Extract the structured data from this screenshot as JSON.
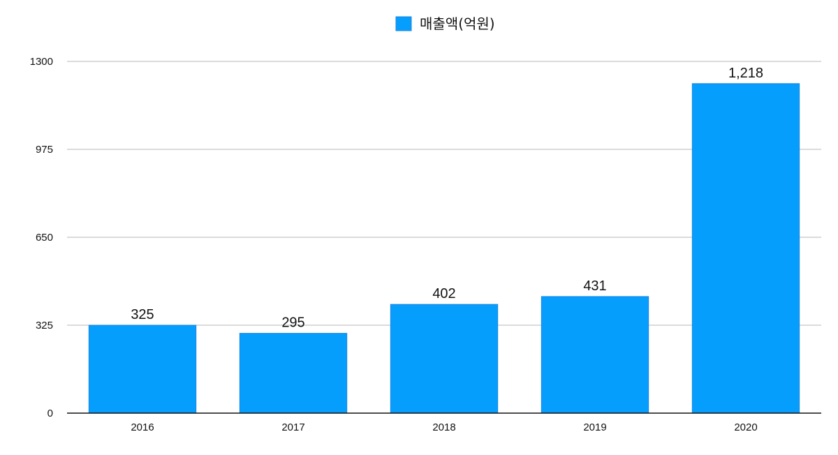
{
  "chart_data": {
    "type": "bar",
    "categories": [
      "2016",
      "2017",
      "2018",
      "2019",
      "2020"
    ],
    "series": [
      {
        "name": "매출액(억원)",
        "values": [
          325,
          295,
          402,
          431,
          1218
        ],
        "labels": [
          "325",
          "295",
          "402",
          "431",
          "1,218"
        ],
        "color": "#069EFC"
      }
    ],
    "y_ticks": [
      "0",
      "325",
      "650",
      "975",
      "1300"
    ],
    "ylim": [
      0,
      1300
    ],
    "grid": true,
    "legend_position": "top-center"
  }
}
